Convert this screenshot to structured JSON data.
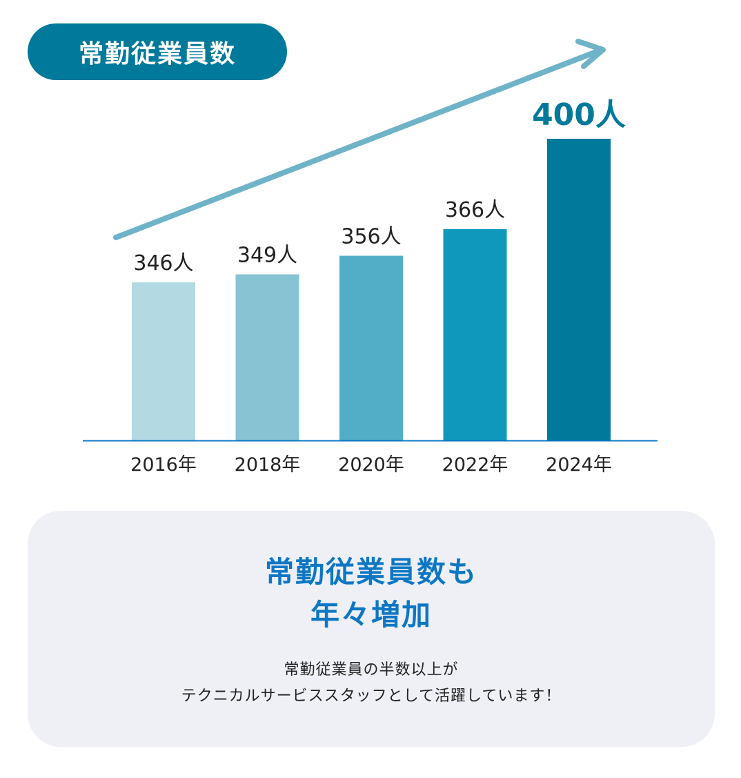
{
  "badge": {
    "label": "常勤従業員数"
  },
  "chart_data": {
    "type": "bar",
    "categories": [
      "2016年",
      "2018年",
      "2020年",
      "2022年",
      "2024年"
    ],
    "values": [
      346,
      349,
      356,
      366,
      400
    ],
    "data_labels": [
      "346人",
      "349人",
      "356人",
      "366人",
      "400人"
    ],
    "unit": "人",
    "highlight_index": 4,
    "colors": [
      "#b3d9e3",
      "#86c4d4",
      "#52adc6",
      "#0f98bc",
      "#00799a"
    ],
    "trend_arrow": true,
    "trend_color": "#6fb3c8",
    "axis_color": "#0d77c4",
    "grid": false,
    "title": "",
    "xlabel": "",
    "ylabel": ""
  },
  "note": {
    "heading_lines": [
      "常勤従業員数も",
      "年々増加"
    ],
    "body_lines": [
      "常勤従業員の半数以上が",
      "テクニカルサービススタッフとして活躍しています！"
    ]
  }
}
